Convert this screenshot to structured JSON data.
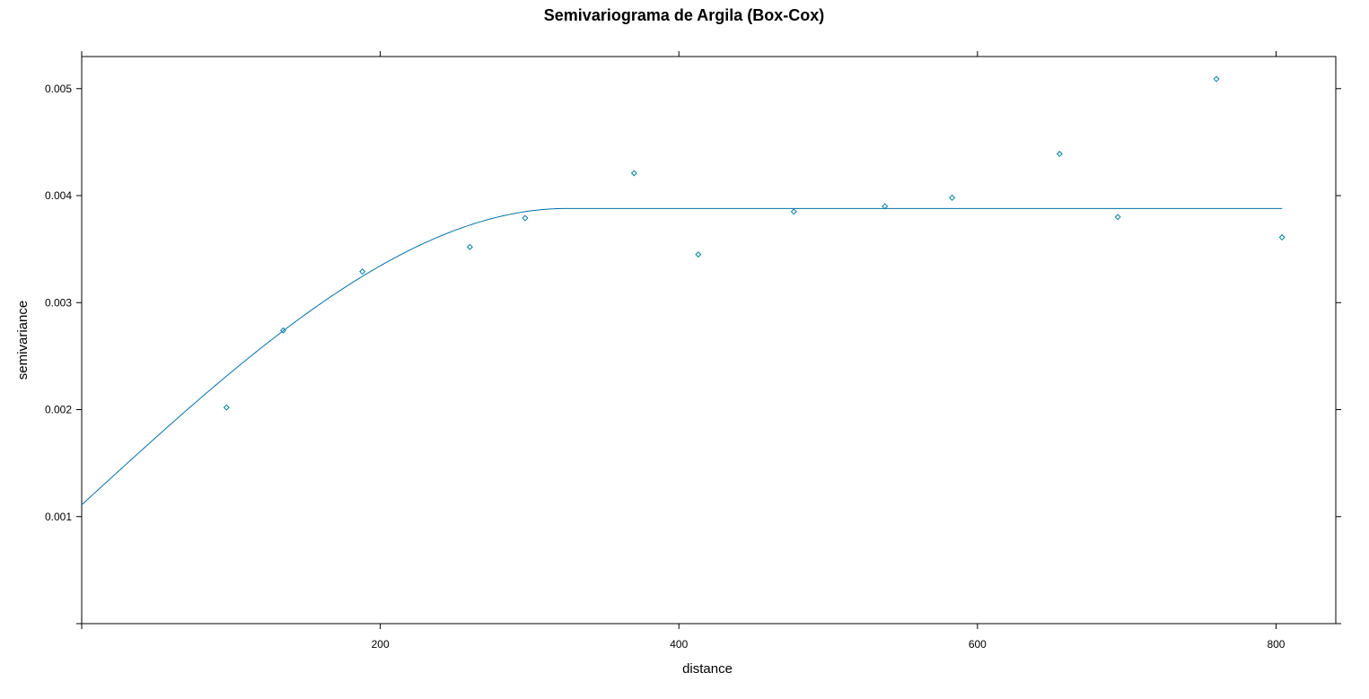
{
  "chart_data": {
    "type": "scatter",
    "title": "Semivariograma de Argila (Box-Cox)",
    "xlabel": "distance",
    "ylabel": "semivariance",
    "xlim": [
      0,
      840
    ],
    "ylim": [
      0,
      0.0053
    ],
    "x_ticks": [
      200,
      400,
      600,
      800
    ],
    "y_ticks": [
      0.001,
      0.002,
      0.003,
      0.004,
      0.005
    ],
    "x_tick_labels": [
      "200",
      "400",
      "600",
      "800"
    ],
    "y_tick_labels": [
      "0.001",
      "0.002",
      "0.003",
      "0.004",
      "0.005"
    ],
    "grid": false,
    "series": [
      {
        "type": "scatter",
        "marker": "diamond",
        "color": "#0080a0",
        "x": [
          97,
          135,
          188,
          260,
          297,
          370,
          413,
          477,
          538,
          583,
          655,
          694,
          760,
          804
        ],
        "y": [
          0.00202,
          0.00274,
          0.00329,
          0.00352,
          0.00379,
          0.00421,
          0.00345,
          0.00385,
          0.0039,
          0.00398,
          0.00439,
          0.0038,
          0.00509,
          0.00361
        ]
      },
      {
        "type": "line",
        "model": "spherical",
        "color": "#0070a8",
        "nugget": 0.00111,
        "sill": 0.00388,
        "range": 325,
        "x_max": 805
      }
    ]
  }
}
